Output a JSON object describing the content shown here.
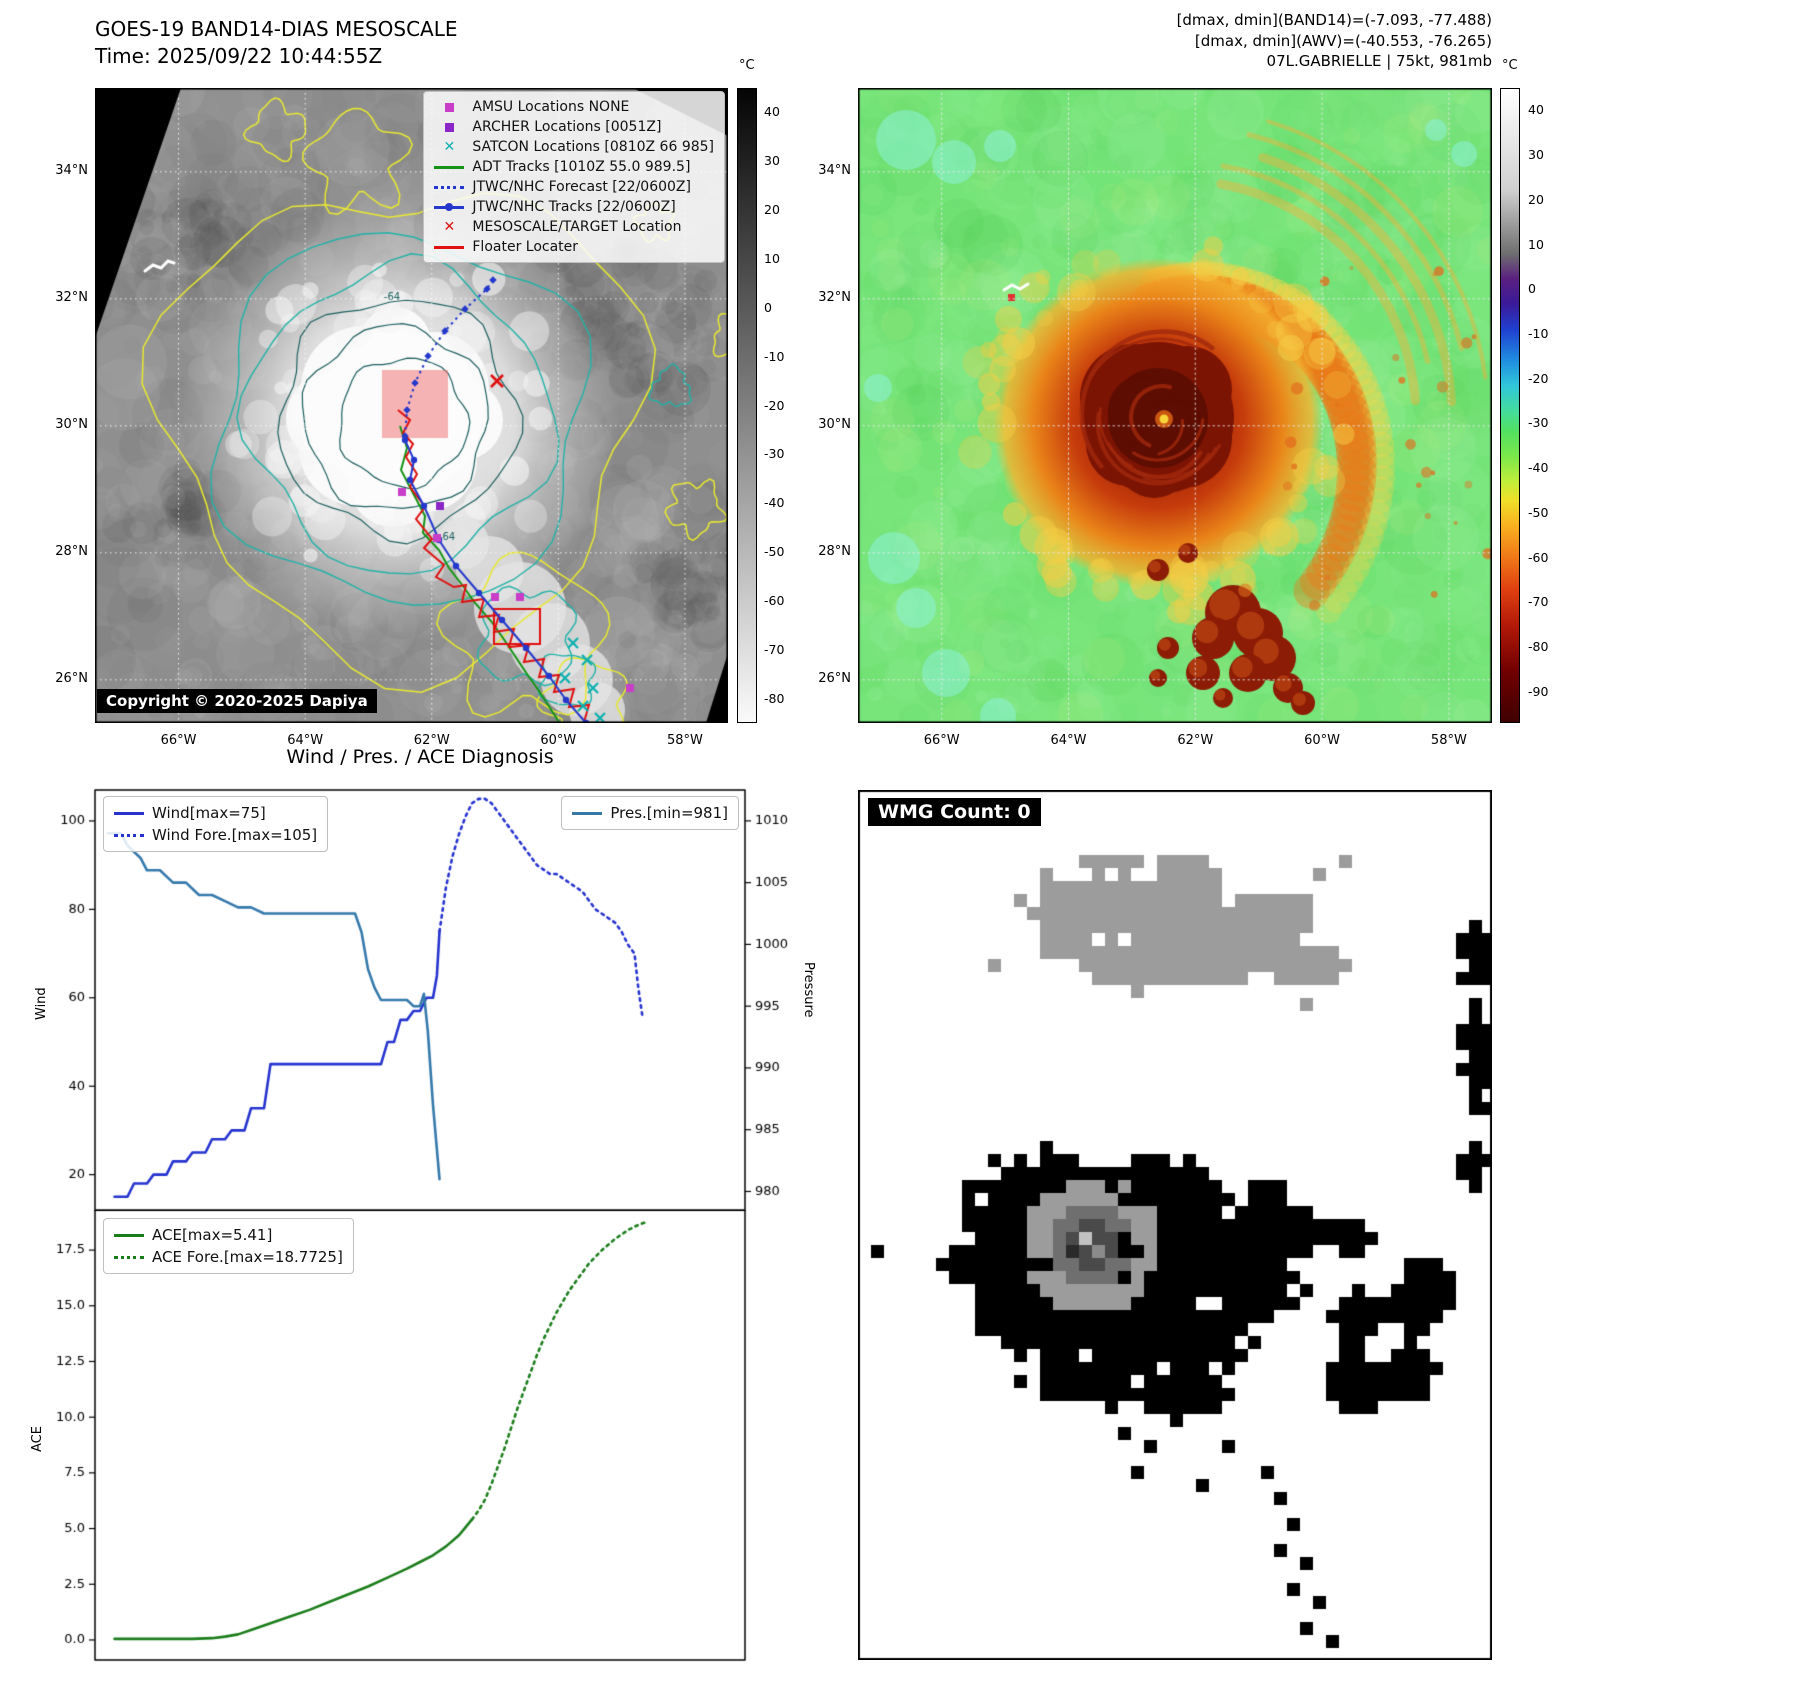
{
  "panel_tl": {
    "title_line1": "GOES-19 BAND14-DIAS MESOSCALE",
    "title_line2": "Time: 2025/09/22 10:44:55Z",
    "copyright": "Copyright © 2020-2025 Dapiya",
    "colorbar": {
      "unit": "°C",
      "ticks": [
        40,
        30,
        20,
        10,
        0,
        -10,
        -20,
        -30,
        -40,
        -50,
        -60,
        -70,
        -80
      ],
      "vmax": 45,
      "vmin": -85
    },
    "legend": [
      {
        "swatch": "square",
        "color": "#c93ec9",
        "label": "AMSU Locations NONE"
      },
      {
        "swatch": "square",
        "color": "#8b27c9",
        "label": "ARCHER Locations [0051Z]"
      },
      {
        "swatch": "x",
        "color": "#0cb0b0",
        "label": "SATCON Locations [0810Z 66 985]"
      },
      {
        "swatch": "line",
        "color": "#149414",
        "label": "ADT Tracks [1010Z 55.0 989.5]"
      },
      {
        "swatch": "dotted-line",
        "color": "#2438cc",
        "label": "JTWC/NHC Forecast [22/0600Z]"
      },
      {
        "swatch": "line-dot",
        "color": "#2438cc",
        "label": "JTWC/NHC Tracks [22/0600Z]"
      },
      {
        "swatch": "x",
        "color": "#e01010",
        "label": "MESOSCALE/TARGET Location"
      },
      {
        "swatch": "line",
        "color": "#e01010",
        "label": "Floater Locater"
      }
    ],
    "lat_labels": [
      "34°N",
      "32°N",
      "30°N",
      "28°N",
      "26°N"
    ],
    "lon_labels": [
      "66°W",
      "64°W",
      "62°W",
      "60°W",
      "58°W"
    ],
    "contour_labels": [
      "-64",
      "-64"
    ]
  },
  "panel_tr": {
    "header_line1": "[dmax, dmin](BAND14)=(-7.093, -77.488)",
    "header_line2": "[dmax, dmin](AWV)=(-40.553, -76.265)",
    "header_line3": "07L.GABRIELLE | 75kt, 981mb",
    "colorbar": {
      "unit": "°C",
      "ticks": [
        40,
        30,
        20,
        10,
        0,
        -10,
        -20,
        -30,
        -40,
        -50,
        -60,
        -70,
        -80,
        -90
      ],
      "vmax": 45,
      "vmin": -97
    },
    "lat_labels": [
      "34°N",
      "32°N",
      "30°N",
      "28°N",
      "26°N"
    ],
    "lon_labels": [
      "66°W",
      "64°W",
      "62°W",
      "60°W",
      "58°W"
    ]
  },
  "panel_br": {
    "wmg_label": "WMG Count: 0"
  },
  "chart_data": [
    {
      "id": "wind_pres",
      "type": "line",
      "title": "Wind / Pres. / ACE Diagnosis",
      "xlim": [
        0,
        100
      ],
      "grid": false,
      "legend_position": "upper left / upper right",
      "left_axis": {
        "label": "Wind",
        "lim": [
          12,
          107
        ],
        "ticks": [
          {
            "v": 20,
            "t": "20"
          },
          {
            "v": 40,
            "t": "40"
          },
          {
            "v": 60,
            "t": "60"
          },
          {
            "v": 80,
            "t": "80"
          },
          {
            "v": 100,
            "t": "100"
          }
        ]
      },
      "right_axis": {
        "label": "Pressure",
        "lim": [
          978.5,
          1012.5
        ],
        "ticks": [
          {
            "v": 980,
            "t": "980"
          },
          {
            "v": 985,
            "t": "985"
          },
          {
            "v": 990,
            "t": "990"
          },
          {
            "v": 995,
            "t": "995"
          },
          {
            "v": 1000,
            "t": "1000"
          },
          {
            "v": 1005,
            "t": "1005"
          },
          {
            "v": 1010,
            "t": "1010"
          }
        ]
      },
      "series": [
        {
          "name": "Wind[max=75]",
          "axis": "left",
          "style": "solid",
          "color": "#2633cf",
          "width": 2.6,
          "x": [
            3,
            5,
            6,
            8,
            9,
            11,
            12,
            14,
            15,
            17,
            18,
            20,
            21,
            23,
            24,
            26,
            27,
            43,
            44,
            45,
            46,
            47,
            48,
            49,
            50,
            51,
            52,
            52.6,
            53
          ],
          "y": [
            15,
            15,
            18,
            18,
            20,
            20,
            23,
            23,
            25,
            25,
            28,
            28,
            30,
            30,
            35,
            35,
            45,
            45,
            45,
            50,
            50,
            55,
            55,
            57,
            57,
            60,
            60,
            65,
            75
          ]
        },
        {
          "name": "Wind Fore.[max=105]",
          "axis": "left",
          "style": "dotted",
          "color": "#2633cf",
          "width": 2.6,
          "x": [
            53,
            54,
            55,
            56,
            57,
            58,
            59,
            60,
            61,
            62,
            63,
            64,
            65,
            66,
            67,
            68,
            69,
            70,
            71,
            72,
            73,
            74,
            75,
            76,
            77,
            78,
            79,
            80,
            81,
            82,
            83,
            83.6,
            84.2
          ],
          "y": [
            75,
            85,
            92,
            97,
            101,
            104,
            105,
            105,
            104,
            102,
            100,
            98,
            96,
            94,
            92,
            90,
            89,
            88,
            88,
            87,
            86,
            85,
            84,
            82,
            80,
            79,
            78,
            77,
            75,
            72,
            70,
            62,
            56
          ]
        },
        {
          "name": "Pres.[min=981]",
          "axis": "right",
          "style": "solid",
          "color": "#3579ab",
          "width": 2.6,
          "x": [
            2,
            4,
            5,
            7,
            8,
            10,
            12,
            14,
            16,
            18,
            20,
            22,
            24,
            26,
            40,
            41,
            42,
            43,
            44,
            46,
            48,
            49,
            50,
            50.6,
            51.2,
            52,
            53
          ],
          "y": [
            1009,
            1009,
            1008,
            1007,
            1006,
            1006,
            1005,
            1005,
            1004,
            1004,
            1003.5,
            1003,
            1003,
            1002.5,
            1002.5,
            1001,
            998,
            996.5,
            995.5,
            995.5,
            995.5,
            995,
            995,
            996,
            993,
            987,
            981
          ]
        }
      ]
    },
    {
      "id": "ace",
      "type": "line",
      "xlim": [
        0,
        100
      ],
      "grid": false,
      "left_axis": {
        "label": "ACE",
        "lim": [
          -0.9,
          19.3
        ],
        "ticks": [
          {
            "v": 0,
            "t": "0.0"
          },
          {
            "v": 2.5,
            "t": "2.5"
          },
          {
            "v": 5,
            "t": "5.0"
          },
          {
            "v": 7.5,
            "t": "7.5"
          },
          {
            "v": 10,
            "t": "10.0"
          },
          {
            "v": 12.5,
            "t": "12.5"
          },
          {
            "v": 15,
            "t": "15.0"
          },
          {
            "v": 17.5,
            "t": "17.5"
          }
        ]
      },
      "series": [
        {
          "name": "ACE[max=5.41]",
          "axis": "left",
          "style": "solid",
          "color": "#1a7d1a",
          "width": 2.6,
          "x": [
            3,
            6,
            9,
            12,
            15,
            18,
            20,
            22,
            24,
            26,
            28,
            30,
            33,
            36,
            39,
            42,
            45,
            48,
            50,
            52,
            54,
            56,
            57,
            58
          ],
          "y": [
            0.05,
            0.05,
            0.05,
            0.05,
            0.05,
            0.08,
            0.15,
            0.25,
            0.45,
            0.65,
            0.85,
            1.05,
            1.35,
            1.7,
            2.05,
            2.4,
            2.8,
            3.2,
            3.5,
            3.8,
            4.2,
            4.7,
            5.05,
            5.41
          ]
        },
        {
          "name": "ACE Fore.[max=18.7725]",
          "axis": "left",
          "style": "dotted",
          "color": "#1a7d1a",
          "width": 2.6,
          "x": [
            58,
            59,
            60,
            61,
            62,
            63,
            64,
            65,
            66,
            67,
            68,
            69,
            70,
            71,
            72,
            73,
            74,
            75,
            76,
            77,
            78,
            79,
            80,
            81,
            82,
            83,
            84,
            85
          ],
          "y": [
            5.41,
            5.8,
            6.3,
            7.0,
            7.8,
            8.6,
            9.5,
            10.4,
            11.2,
            12.0,
            12.8,
            13.5,
            14.1,
            14.7,
            15.2,
            15.7,
            16.1,
            16.5,
            16.9,
            17.2,
            17.5,
            17.75,
            18.0,
            18.2,
            18.4,
            18.55,
            18.68,
            18.77
          ]
        }
      ]
    }
  ]
}
